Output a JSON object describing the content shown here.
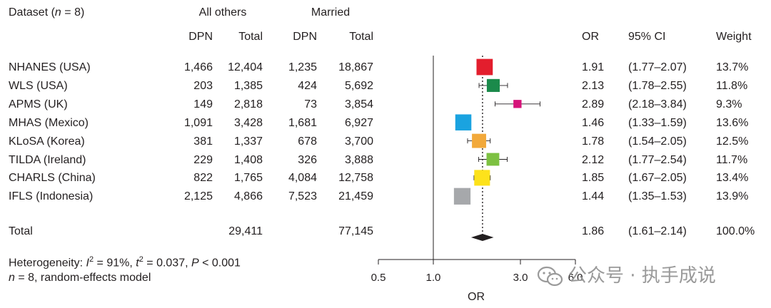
{
  "header": {
    "dataset_prefix": "Dataset (",
    "dataset_n": "n",
    "dataset_suffix": " = 8)",
    "group_all_others": "All others",
    "group_married": "Married",
    "col_dpn_1": "DPN",
    "col_total_1": "Total",
    "col_dpn_2": "DPN",
    "col_total_2": "Total",
    "col_or": "OR",
    "col_ci": "95% CI",
    "col_weight": "Weight"
  },
  "rows": [
    {
      "dataset": "NHANES (USA)",
      "dpn_others": "1,466",
      "total_others": "12,404",
      "dpn_married": "1,235",
      "total_married": "18,867",
      "or": "1.91",
      "ci": "(1.77–2.07)",
      "weight": "13.7%"
    },
    {
      "dataset": "WLS (USA)",
      "dpn_others": "203",
      "total_others": "1,385",
      "dpn_married": "424",
      "total_married": "5,692",
      "or": "2.13",
      "ci": "(1.78–2.55)",
      "weight": "11.8%"
    },
    {
      "dataset": "APMS (UK)",
      "dpn_others": "149",
      "total_others": "2,818",
      "dpn_married": "73",
      "total_married": "3,854",
      "or": "2.89",
      "ci": "(2.18–3.84)",
      "weight": "9.3%"
    },
    {
      "dataset": "MHAS (Mexico)",
      "dpn_others": "1,091",
      "total_others": "3,428",
      "dpn_married": "1,681",
      "total_married": "6,927",
      "or": "1.46",
      "ci": "(1.33–1.59)",
      "weight": "13.6%"
    },
    {
      "dataset": "KLoSA (Korea)",
      "dpn_others": "381",
      "total_others": "1,337",
      "dpn_married": "678",
      "total_married": "3,700",
      "or": "1.78",
      "ci": "(1.54–2.05)",
      "weight": "12.5%"
    },
    {
      "dataset": "TILDA (Ireland)",
      "dpn_others": "229",
      "total_others": "1,408",
      "dpn_married": "326",
      "total_married": "3,888",
      "or": "2.12",
      "ci": "(1.77–2.54)",
      "weight": "11.7%"
    },
    {
      "dataset": "CHARLS (China)",
      "dpn_others": "822",
      "total_others": "1,765",
      "dpn_married": "4,084",
      "total_married": "12,758",
      "or": "1.85",
      "ci": "(1.67–2.05)",
      "weight": "13.4%"
    },
    {
      "dataset": "IFLS (Indonesia)",
      "dpn_others": "2,125",
      "total_others": "4,866",
      "dpn_married": "7,523",
      "total_married": "21,459",
      "or": "1.44",
      "ci": "(1.35–1.53)",
      "weight": "13.9%"
    }
  ],
  "total_row": {
    "label": "Total",
    "total_others": "29,411",
    "total_married": "77,145",
    "or": "1.86",
    "ci": "(1.61–2.14)",
    "weight": "100.0%"
  },
  "footer": {
    "het_label": "Heterogeneity: ",
    "het_I": "I",
    "het_sup2": "2",
    "het_i_value": " = 91%, ",
    "het_t": "t",
    "het_t_value": " = 0.037, ",
    "het_P": "P",
    "het_p_value": " < 0.001",
    "model_n": "n",
    "model_text": " = 8, random-effects model"
  },
  "watermark": {
    "text": "公众号 · 执手成说",
    "icon": "wechat-icon"
  },
  "chart_data": {
    "type": "forest",
    "xlabel": "OR",
    "xscale": "log",
    "xlim": [
      0.5,
      6.0
    ],
    "xticks": [
      0.5,
      1.0,
      3.0,
      6.0
    ],
    "xtick_labels": [
      "0.5",
      "1.0",
      "3.0",
      "6.0"
    ],
    "null_line": 1.0,
    "pooled_line": 1.86,
    "studies": [
      {
        "name": "NHANES (USA)",
        "or": 1.91,
        "lo": 1.77,
        "hi": 2.07,
        "weight": 13.7,
        "color": "#e31e2d"
      },
      {
        "name": "WLS (USA)",
        "or": 2.13,
        "lo": 1.78,
        "hi": 2.55,
        "weight": 11.8,
        "color": "#1b8a4b"
      },
      {
        "name": "APMS (UK)",
        "or": 2.89,
        "lo": 2.18,
        "hi": 3.84,
        "weight": 9.3,
        "color": "#d6137a"
      },
      {
        "name": "MHAS (Mexico)",
        "or": 1.46,
        "lo": 1.33,
        "hi": 1.59,
        "weight": 13.6,
        "color": "#1aa3e0"
      },
      {
        "name": "KLoSA (Korea)",
        "or": 1.78,
        "lo": 1.54,
        "hi": 2.05,
        "weight": 12.5,
        "color": "#f2a93b"
      },
      {
        "name": "TILDA (Ireland)",
        "or": 2.12,
        "lo": 1.77,
        "hi": 2.54,
        "weight": 11.7,
        "color": "#7dc142"
      },
      {
        "name": "CHARLS (China)",
        "or": 1.85,
        "lo": 1.67,
        "hi": 2.05,
        "weight": 13.4,
        "color": "#fde21b"
      },
      {
        "name": "IFLS (Indonesia)",
        "or": 1.44,
        "lo": 1.35,
        "hi": 1.53,
        "weight": 13.9,
        "color": "#a6a8ab"
      }
    ],
    "pooled": {
      "or": 1.86,
      "lo": 1.61,
      "hi": 2.14,
      "color": "#231f20"
    }
  }
}
